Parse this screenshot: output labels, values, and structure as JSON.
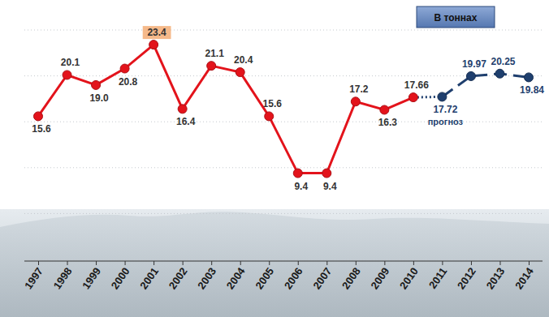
{
  "chart_data": {
    "type": "line",
    "y_label": "В тоннах",
    "categories": [
      "1997",
      "1998",
      "1999",
      "2000",
      "2001",
      "2002",
      "2003",
      "2004",
      "2005",
      "2006",
      "2007",
      "2008",
      "2009",
      "2010",
      "2011",
      "2012",
      "2013",
      "2014"
    ],
    "series": [
      {
        "color": "#e3131b",
        "marker": "circle",
        "line_style": "solid",
        "values": [
          15.6,
          20.1,
          19.0,
          20.8,
          23.4,
          16.4,
          21.1,
          20.4,
          15.6,
          9.4,
          9.4,
          17.2,
          16.3,
          17.66,
          null,
          null,
          null,
          null
        ],
        "value_labels": [
          "15.6",
          "20.1",
          "19.0",
          "20.8",
          "23.4",
          "16.4",
          "21.1",
          "20.4",
          "15.6",
          "9.4",
          "9.4",
          "17.2",
          "16.3",
          "17.66",
          null,
          null,
          null,
          null
        ]
      },
      {
        "name": "прогноз",
        "color": "#1f3f6e",
        "marker": "circle",
        "line_style": "dashed",
        "values": [
          null,
          null,
          null,
          null,
          null,
          null,
          null,
          null,
          null,
          null,
          null,
          null,
          null,
          null,
          17.72,
          19.97,
          20.25,
          19.84
        ],
        "value_labels": [
          null,
          null,
          null,
          null,
          null,
          null,
          null,
          null,
          null,
          null,
          null,
          null,
          null,
          null,
          "17.72",
          "19.97",
          "20.25",
          "19.84"
        ]
      }
    ],
    "ylim": [
      0,
      25
    ],
    "yticks": [
      0,
      5,
      10,
      15,
      20,
      25
    ],
    "grid": true,
    "data_labels": true,
    "tick_labels": "x"
  }
}
